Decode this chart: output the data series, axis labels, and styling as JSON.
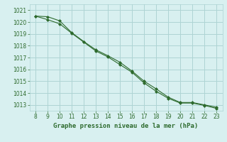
{
  "line1_x": [
    8,
    9,
    10,
    11,
    12,
    13,
    14,
    15,
    16,
    17,
    18,
    19,
    20,
    21,
    22,
    23
  ],
  "line1_y": [
    1020.5,
    1020.45,
    1020.1,
    1019.1,
    1018.35,
    1017.65,
    1017.15,
    1016.6,
    1015.85,
    1015.0,
    1014.35,
    1013.65,
    1013.2,
    1013.2,
    1013.0,
    1012.8
  ],
  "line2_x": [
    8,
    9,
    10,
    11,
    12,
    13,
    14,
    15,
    16,
    17,
    18,
    19,
    20,
    21,
    22,
    23
  ],
  "line2_y": [
    1020.5,
    1020.2,
    1019.85,
    1019.05,
    1018.3,
    1017.55,
    1017.05,
    1016.4,
    1015.75,
    1014.85,
    1014.15,
    1013.55,
    1013.15,
    1013.15,
    1012.95,
    1012.7
  ],
  "background_color": "#d8f0f0",
  "grid_color": "#aed4d4",
  "line_color": "#2d6a2d",
  "xlabel": "Graphe pression niveau de la mer (hPa)",
  "ylim": [
    1012.5,
    1021.5
  ],
  "xlim": [
    7.5,
    23.5
  ],
  "yticks": [
    1013,
    1014,
    1015,
    1016,
    1017,
    1018,
    1019,
    1020,
    1021
  ],
  "xticks": [
    8,
    9,
    10,
    11,
    12,
    13,
    14,
    15,
    16,
    17,
    18,
    19,
    20,
    21,
    22,
    23
  ],
  "tick_fontsize": 5.5,
  "xlabel_fontsize": 6.5
}
